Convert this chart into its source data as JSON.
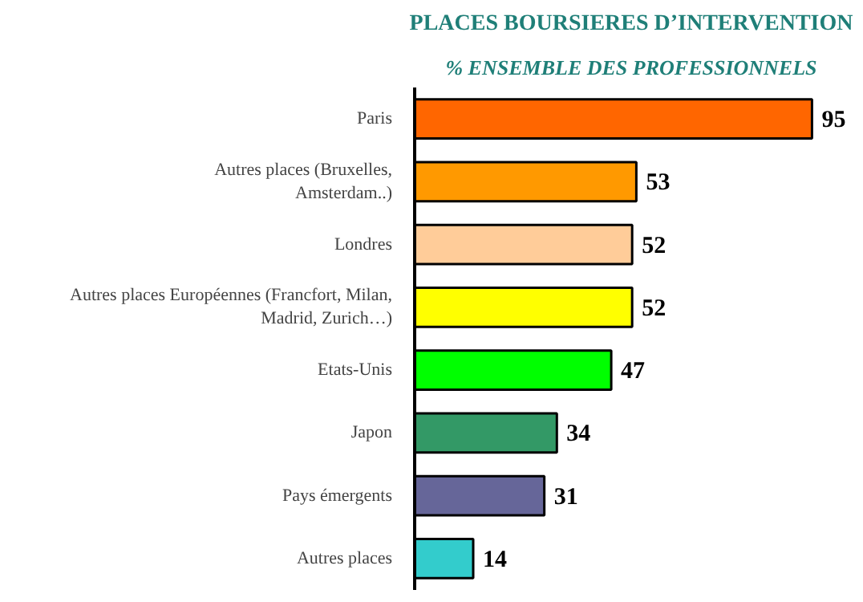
{
  "chart_data": {
    "type": "bar",
    "orientation": "horizontal",
    "title": "PLACES BOURSIERES D’INTERVENTION",
    "subtitle": "% ENSEMBLE DES PROFESSIONNELS",
    "categories": [
      "Paris",
      "Autres places (Bruxelles,\nAmsterdam..)",
      "Londres",
      "Autres places Européennes (Francfort, Milan,\nMadrid, Zurich…)",
      "Etats-Unis",
      "Japon",
      "Pays émergents",
      "Autres places"
    ],
    "values": [
      95,
      53,
      52,
      52,
      47,
      34,
      31,
      14
    ],
    "colors": [
      "#ff6600",
      "#ff9900",
      "#ffcc99",
      "#ffff00",
      "#00ff00",
      "#339966",
      "#666699",
      "#33cccc"
    ],
    "data_labels": true,
    "grid": false,
    "legend": false
  }
}
